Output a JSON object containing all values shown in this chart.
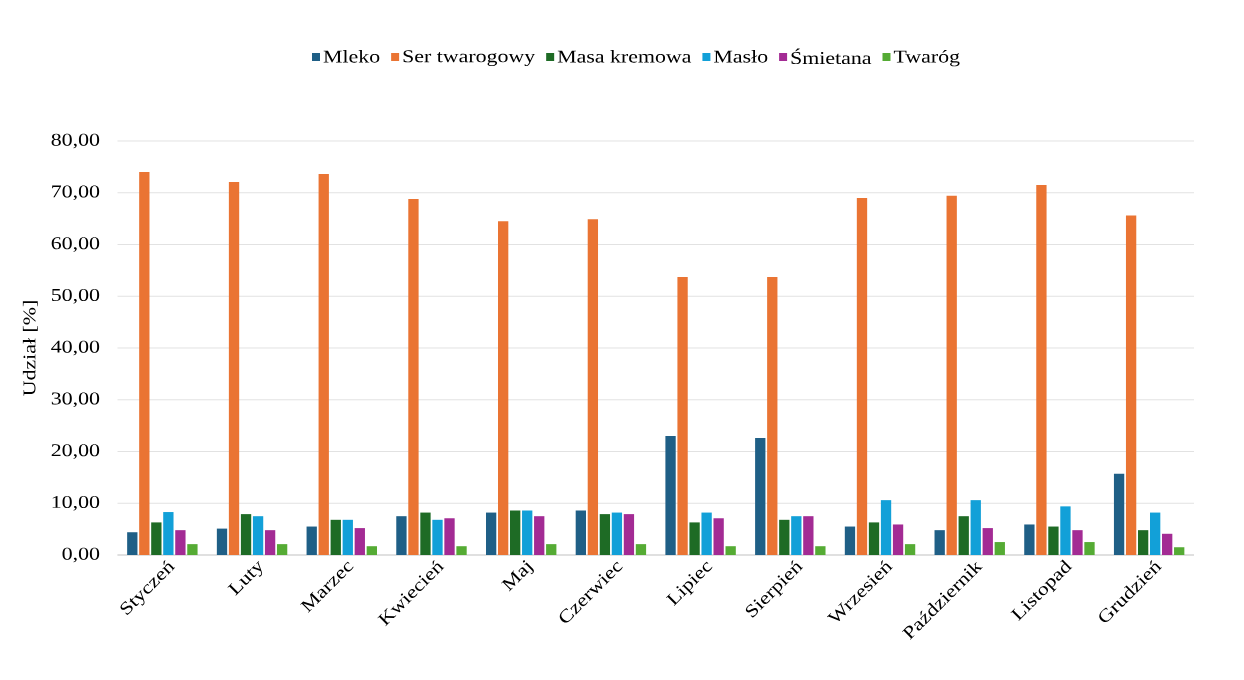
{
  "chart_data": {
    "type": "bar",
    "categories": [
      "Styczeń",
      "Luty",
      "Marzec",
      "Kwiecień",
      "Maj",
      "Czerwiec",
      "Lipiec",
      "Sierpień",
      "Wrzesień",
      "Październik",
      "Listopad",
      "Grudzień"
    ],
    "series": [
      {
        "name": "Mleko",
        "color": "#1f5f86",
        "values": [
          4.4,
          5.1,
          5.5,
          7.5,
          8.2,
          8.6,
          23.0,
          22.6,
          5.5,
          4.8,
          5.9,
          15.7
        ]
      },
      {
        "name": "Ser twarogowy",
        "color": "#ea7433",
        "values": [
          74.0,
          72.1,
          73.6,
          68.8,
          64.5,
          64.9,
          53.7,
          53.7,
          69.0,
          69.4,
          71.5,
          65.6
        ]
      },
      {
        "name": "Masa kremowa",
        "color": "#1e6b25",
        "values": [
          6.3,
          7.9,
          6.8,
          8.2,
          8.6,
          7.9,
          6.3,
          6.8,
          6.3,
          7.5,
          5.5,
          4.8
        ]
      },
      {
        "name": "Masło",
        "color": "#12a0d8",
        "values": [
          8.3,
          7.5,
          6.8,
          6.8,
          8.6,
          8.2,
          8.2,
          7.5,
          10.6,
          10.6,
          9.4,
          8.2
        ]
      },
      {
        "name": "Śmietana",
        "color": "#a32b94",
        "values": [
          4.8,
          4.8,
          5.2,
          7.1,
          7.5,
          7.9,
          7.1,
          7.5,
          5.9,
          5.2,
          4.8,
          4.1
        ]
      },
      {
        "name": "Twaróg",
        "color": "#55ab34",
        "values": [
          2.1,
          2.1,
          1.7,
          1.7,
          2.1,
          2.1,
          1.7,
          1.7,
          2.1,
          2.5,
          2.5,
          1.5
        ]
      }
    ],
    "ylabel": "Udział [%]",
    "ylim": [
      0,
      80
    ],
    "yticks": [
      {
        "value": 0,
        "label": "0,00"
      },
      {
        "value": 10,
        "label": "10,00"
      },
      {
        "value": 20,
        "label": "20,00"
      },
      {
        "value": 30,
        "label": "30,00"
      },
      {
        "value": 40,
        "label": "40,00"
      },
      {
        "value": 50,
        "label": "50,00"
      },
      {
        "value": 60,
        "label": "60,00"
      },
      {
        "value": 70,
        "label": "70,00"
      },
      {
        "value": 80,
        "label": "80,00"
      }
    ],
    "grid": "y",
    "legend": "top"
  }
}
